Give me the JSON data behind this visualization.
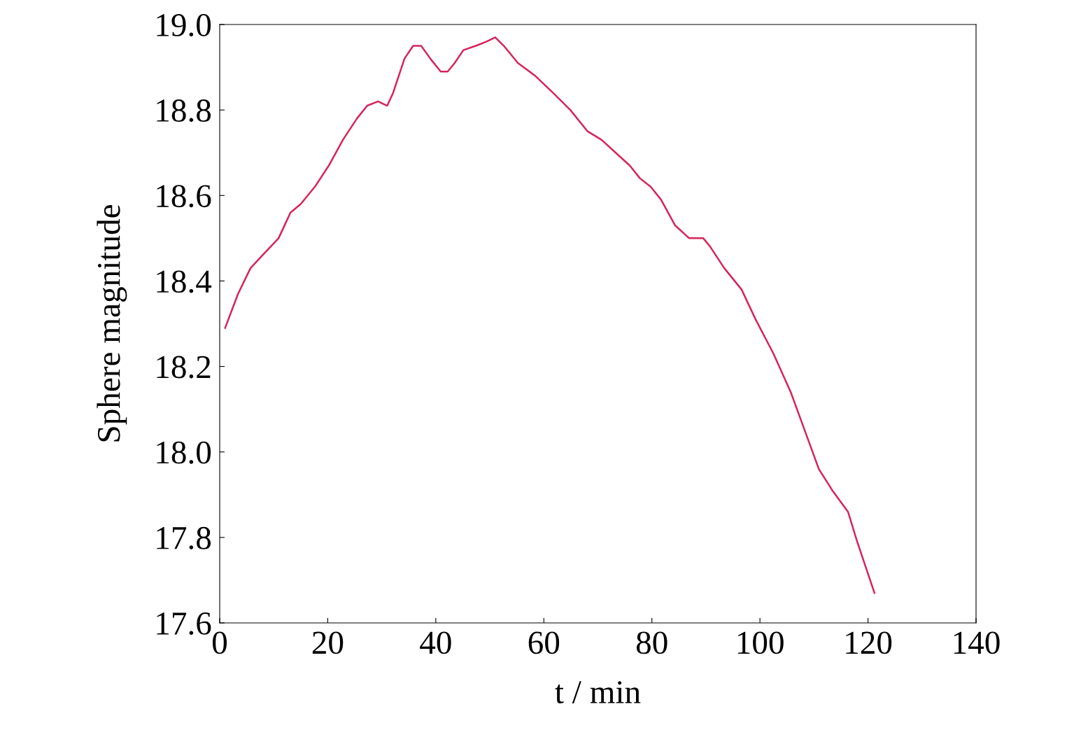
{
  "chart_data": {
    "type": "line",
    "xlabel": "t / min",
    "ylabel": "Sphere magnitude",
    "xlim": [
      0,
      140
    ],
    "ylim": [
      17.6,
      19.0
    ],
    "xticks": [
      0,
      20,
      40,
      60,
      80,
      100,
      120,
      140
    ],
    "yticks": [
      {
        "value": 17.6,
        "label": "17.6"
      },
      {
        "value": 17.8,
        "label": "17.8"
      },
      {
        "value": 18.0,
        "label": "18.0"
      },
      {
        "value": 18.2,
        "label": "18.2"
      },
      {
        "value": 18.4,
        "label": "18.4"
      },
      {
        "value": 18.6,
        "label": "18.6"
      },
      {
        "value": 18.8,
        "label": "18.8"
      },
      {
        "value": 19.0,
        "label": "19.0"
      }
    ],
    "grid": false,
    "marker": "none",
    "line_style": "solid",
    "series": [
      {
        "color": "#d6245a",
        "x": [
          1.0,
          3.4,
          5.7,
          7.9,
          10.9,
          13.1,
          15.0,
          17.6,
          20.2,
          22.8,
          25.4,
          27.3,
          29.3,
          31.0,
          32.1,
          34.2,
          35.8,
          37.3,
          39.0,
          40.9,
          42.2,
          43.5,
          45.1,
          47.4,
          49.4,
          51.0,
          52.6,
          55.2,
          58.4,
          61.7,
          64.9,
          68.1,
          70.7,
          73.3,
          75.9,
          77.8,
          79.8,
          81.7,
          84.3,
          86.9,
          89.5,
          90.8,
          93.4,
          96.6,
          99.2,
          102.5,
          105.7,
          108.3,
          110.9,
          113.4,
          116.3,
          118.0,
          121.2
        ],
        "values": [
          18.29,
          18.37,
          18.43,
          18.46,
          18.5,
          18.56,
          18.58,
          18.62,
          18.67,
          18.73,
          18.78,
          18.81,
          18.82,
          18.81,
          18.84,
          18.92,
          18.95,
          18.95,
          18.92,
          18.89,
          18.89,
          18.91,
          18.94,
          18.95,
          18.96,
          18.97,
          18.95,
          18.91,
          18.88,
          18.84,
          18.8,
          18.75,
          18.73,
          18.7,
          18.67,
          18.64,
          18.62,
          18.59,
          18.53,
          18.5,
          18.5,
          18.48,
          18.43,
          18.38,
          18.31,
          18.23,
          18.14,
          18.05,
          17.96,
          17.91,
          17.86,
          17.79,
          17.67
        ]
      }
    ]
  }
}
